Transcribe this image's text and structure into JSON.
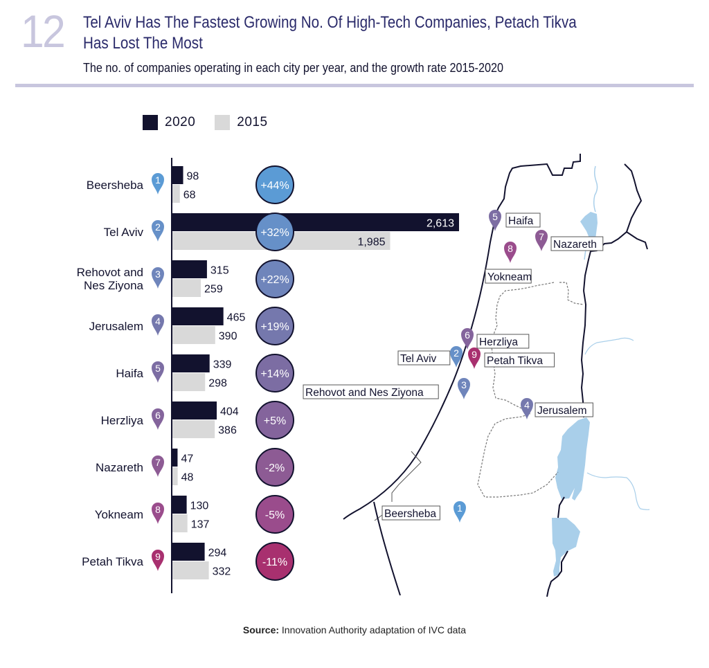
{
  "figure_number": "12",
  "title_lines": [
    "Tel Aviv Has The Fastest Growing No. Of High-Tech Companies, Petach Tikva",
    "Has Lost The Most"
  ],
  "subtitle": "The no. of companies operating in each city per year, and the growth rate 2015-2020",
  "legend": [
    {
      "label": "2020",
      "color": "#12122e"
    },
    {
      "label": "2015",
      "color": "#d9d9d9"
    }
  ],
  "source": {
    "label": "Source:",
    "text": "Innovation Authority adaptation of IVC data"
  },
  "chart_data": {
    "type": "bar",
    "orientation": "horizontal",
    "title": "Tel Aviv Has The Fastest Growing No. Of High-Tech Companies, Petach Tikva Has Lost The Most",
    "subtitle": "The no. of companies operating in each city per year, and the growth rate 2015-2020",
    "xlabel": "",
    "ylabel": "",
    "xlim": [
      0,
      2613
    ],
    "grid": false,
    "legend_position": "top-left",
    "categories": [
      "Beersheba",
      "Tel Aviv",
      "Rehovot and Nes Ziyona",
      "Jerusalem",
      "Haifa",
      "Herzliya",
      "Nazareth",
      "Yokneam",
      "Petah Tikva"
    ],
    "category_lines": [
      [
        "Beersheba"
      ],
      [
        "Tel Aviv"
      ],
      [
        "Rehovot and",
        "Nes Ziyona"
      ],
      [
        "Jerusalem"
      ],
      [
        "Haifa"
      ],
      [
        "Herzliya"
      ],
      [
        "Nazareth"
      ],
      [
        "Yokneam"
      ],
      [
        "Petah Tikva"
      ]
    ],
    "rank": [
      1,
      2,
      3,
      4,
      5,
      6,
      7,
      8,
      9
    ],
    "series": [
      {
        "name": "2020",
        "color": "#12122e",
        "values": [
          98,
          2613,
          315,
          465,
          339,
          404,
          47,
          130,
          294
        ],
        "labels": [
          "98",
          "2,613",
          "315",
          "465",
          "339",
          "404",
          "47",
          "130",
          "294"
        ]
      },
      {
        "name": "2015",
        "color": "#d9d9d9",
        "values": [
          68,
          1985,
          259,
          390,
          298,
          386,
          48,
          137,
          332
        ],
        "labels": [
          "68",
          "1,985",
          "259",
          "390",
          "298",
          "386",
          "48",
          "137",
          "332"
        ]
      }
    ],
    "growth_rate": [
      "+44%",
      "+32%",
      "+22%",
      "+19%",
      "+14%",
      "+5%",
      "-2%",
      "-5%",
      "-11%"
    ],
    "rank_colors": [
      "#5b9bd5",
      "#6690c8",
      "#6f85bb",
      "#7578ad",
      "#7c6da3",
      "#84649c",
      "#8d5b94",
      "#9a4c8c",
      "#a8306f"
    ]
  },
  "map": {
    "labels": [
      {
        "rank": 1,
        "name": "Beersheba"
      },
      {
        "rank": 2,
        "name": "Tel Aviv"
      },
      {
        "rank": 3,
        "name": "Rehovot and Nes Ziyona"
      },
      {
        "rank": 4,
        "name": "Jerusalem"
      },
      {
        "rank": 5,
        "name": "Haifa"
      },
      {
        "rank": 6,
        "name": "Herzliya"
      },
      {
        "rank": 7,
        "name": "Nazareth"
      },
      {
        "rank": 8,
        "name": "Yokneam"
      },
      {
        "rank": 9,
        "name": "Petah Tikva"
      }
    ],
    "water_color": "#a9cfea",
    "border_color": "#12122e"
  }
}
